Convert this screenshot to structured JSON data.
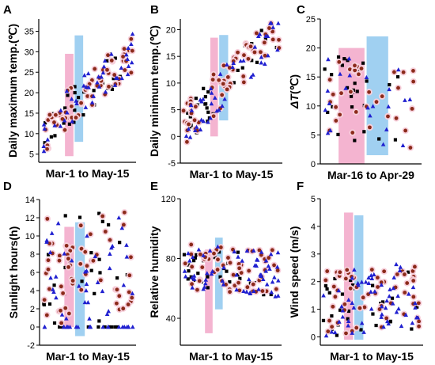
{
  "colors": {
    "pink": "#f2a7c8",
    "blue": "#8fc8ef",
    "black_square": "#000000",
    "brown_circle": "#8b2a1a",
    "blue_triangle": "#2020d0",
    "highlight": "#f7d0dc"
  },
  "chart_data": [
    {
      "letter": "A",
      "type": "scatter",
      "xlabel": "Mar-1 to May-15",
      "ylabel": "Daily maximum temp.(℃)",
      "yticks": [
        5,
        10,
        15,
        20,
        25,
        30,
        35
      ],
      "ylim": [
        3,
        38
      ],
      "x_days": [
        1,
        76
      ],
      "shaded_regions": [
        {
          "color": "pink",
          "x": [
            20,
            27
          ],
          "y": [
            4.5,
            29.5
          ]
        },
        {
          "color": "blue",
          "x": [
            28,
            35
          ],
          "y": [
            8,
            34
          ]
        }
      ],
      "seed": 11,
      "base": [
        10,
        30
      ],
      "jitter": 5,
      "series": [
        {
          "marker": "square",
          "count": 32
        },
        {
          "marker": "circle",
          "count": 60
        },
        {
          "marker": "triangle",
          "count": 45
        }
      ]
    },
    {
      "letter": "B",
      "type": "scatter",
      "xlabel": "Mar-1 to May-15",
      "ylabel": "Daily minimum temp.(℃)",
      "yticks": [
        -5,
        0,
        5,
        10,
        15,
        20
      ],
      "ylim": [
        -5,
        22
      ],
      "x_days": [
        1,
        76
      ],
      "shaded_regions": [
        {
          "color": "pink",
          "x": [
            22,
            28
          ],
          "y": [
            0,
            18.5
          ]
        },
        {
          "color": "blue",
          "x": [
            29,
            36
          ],
          "y": [
            3,
            19
          ]
        }
      ],
      "seed": 23,
      "base": [
        2,
        20
      ],
      "jitter": 4,
      "series": [
        {
          "marker": "square",
          "count": 32
        },
        {
          "marker": "circle",
          "count": 60
        },
        {
          "marker": "triangle",
          "count": 45
        }
      ]
    },
    {
      "letter": "C",
      "type": "scatter",
      "xlabel": "Mar-16 to Apr-29",
      "ylabel": "ΔT(℃)",
      "yticks": [
        0,
        5,
        10,
        15,
        20,
        25
      ],
      "ylim": [
        0,
        25
      ],
      "x_days": [
        1,
        45
      ],
      "shaded_regions": [
        {
          "color": "pink",
          "x": [
            8,
            20
          ],
          "y": [
            0,
            20
          ]
        },
        {
          "color": "blue",
          "x": [
            21,
            31
          ],
          "y": [
            1.5,
            22
          ]
        }
      ],
      "seed": 37,
      "base": [
        12,
        9
      ],
      "jitter": 7,
      "series": [
        {
          "marker": "square",
          "count": 26
        },
        {
          "marker": "circle",
          "count": 34
        },
        {
          "marker": "triangle",
          "count": 22
        }
      ]
    },
    {
      "letter": "D",
      "type": "scatter",
      "xlabel": "Mar-1 to May-15",
      "ylabel": "Sunlight hours(h)",
      "yticks": [
        -2,
        0,
        2,
        4,
        6,
        8,
        10,
        12,
        14
      ],
      "ylim": [
        -2,
        14
      ],
      "x_days": [
        1,
        76
      ],
      "shaded_regions": [
        {
          "color": "pink",
          "x": [
            19,
            27
          ],
          "y": [
            0,
            11
          ]
        },
        {
          "color": "blue",
          "x": [
            28,
            36
          ],
          "y": [
            -1,
            11.5
          ]
        }
      ],
      "seed": 41,
      "base": [
        6,
        7
      ],
      "jitter": 6,
      "zero_fraction": 0.35,
      "series": [
        {
          "marker": "square",
          "count": 32
        },
        {
          "marker": "circle",
          "count": 60
        },
        {
          "marker": "triangle",
          "count": 60
        }
      ]
    },
    {
      "letter": "E",
      "type": "scatter",
      "xlabel": "Mar-1 to May-15",
      "ylabel": "Relative humidity",
      "yticks": [
        40,
        80,
        120
      ],
      "ylim": [
        22,
        120
      ],
      "x_days": [
        1,
        76
      ],
      "shaded_regions": [
        {
          "color": "pink",
          "x": [
            18,
            24
          ],
          "y": [
            30,
            86
          ]
        },
        {
          "color": "blue",
          "x": [
            26,
            32
          ],
          "y": [
            46,
            94
          ]
        }
      ],
      "seed": 53,
      "base": [
        75,
        70
      ],
      "jitter": 16,
      "series": [
        {
          "marker": "square",
          "count": 32
        },
        {
          "marker": "circle",
          "count": 60
        },
        {
          "marker": "triangle",
          "count": 60
        }
      ]
    },
    {
      "letter": "F",
      "type": "scatter",
      "xlabel": "Mar-1 to May-15",
      "ylabel": "Wind speed (m/s)",
      "yticks": [
        0,
        1,
        2,
        3,
        4,
        5
      ],
      "ylim": [
        -0.3,
        5
      ],
      "x_days": [
        1,
        76
      ],
      "shaded_regions": [
        {
          "color": "pink",
          "x": [
            17,
            24
          ],
          "y": [
            -0.1,
            4.5
          ]
        },
        {
          "color": "blue",
          "x": [
            25,
            32
          ],
          "y": [
            -0.1,
            4.4
          ]
        }
      ],
      "seed": 67,
      "base": [
        1.2,
        1.5
      ],
      "jitter": 1.2,
      "series": [
        {
          "marker": "square",
          "count": 32
        },
        {
          "marker": "circle",
          "count": 60
        },
        {
          "marker": "triangle",
          "count": 60
        }
      ]
    }
  ]
}
